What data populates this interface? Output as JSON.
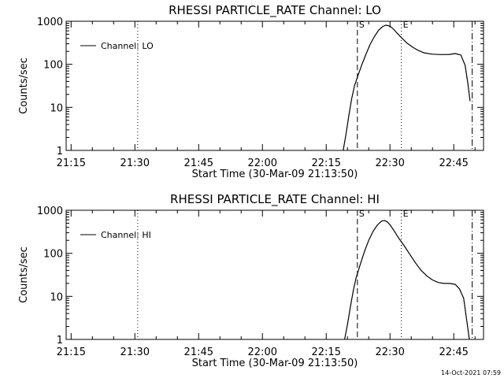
{
  "footer": {
    "timestamp": "14-Oct-2021 07:59"
  },
  "chart_data": [
    {
      "type": "line",
      "title": "RHESSI PARTICLE_RATE Channel: LO",
      "xlabel": "Start Time (30-Mar-09 21:13:50)",
      "ylabel": "Counts/sec",
      "yscale": "log",
      "ylim": [
        1,
        1000
      ],
      "ytick_labels": [
        "1",
        "10",
        "100",
        "1000"
      ],
      "yticks": [
        1,
        10,
        100,
        1000
      ],
      "xlim": [
        "21:13:50",
        "22:52:00"
      ],
      "xtick_labels": [
        "21:15",
        "21:30",
        "21:45",
        "22:00",
        "22:15",
        "22:30",
        "22:45"
      ],
      "xticks": [
        "21:15",
        "21:30",
        "21:45",
        "22:00",
        "22:15",
        "22:30",
        "22:45"
      ],
      "legend": {
        "placement": "top-left",
        "entries": [
          "Channel: LO"
        ]
      },
      "markers": [
        {
          "x": "21:30:40",
          "style": "dotted",
          "label": ""
        },
        {
          "x": "22:22:20",
          "style": "dashed",
          "label": "S"
        },
        {
          "x": "22:32:40",
          "style": "dotted",
          "label": "E"
        },
        {
          "x": "22:49:20",
          "style": "dashdot",
          "label": ""
        }
      ],
      "series": [
        {
          "name": "Channel: LO",
          "x": [
            "22:19:00",
            "22:19:40",
            "22:20:20",
            "22:21:00",
            "22:21:40",
            "22:22:20",
            "22:23:20",
            "22:24:20",
            "22:25:20",
            "22:26:20",
            "22:27:20",
            "22:28:20",
            "22:29:00",
            "22:29:40",
            "22:30:20",
            "22:31:00",
            "22:31:40",
            "22:32:40",
            "22:34:00",
            "22:35:20",
            "22:36:40",
            "22:38:00",
            "22:40:00",
            "22:42:00",
            "22:44:00",
            "22:45:20",
            "22:46:40",
            "22:47:40",
            "22:48:20",
            "22:48:50"
          ],
          "y": [
            1.0,
            2.4,
            6.5,
            16,
            32,
            50,
            95,
            170,
            290,
            440,
            620,
            760,
            810,
            790,
            730,
            630,
            530,
            420,
            310,
            250,
            210,
            185,
            172,
            168,
            170,
            178,
            165,
            95,
            35,
            14
          ]
        }
      ]
    },
    {
      "type": "line",
      "title": "RHESSI PARTICLE_RATE Channel: HI",
      "xlabel": "Start Time (30-Mar-09 21:13:50)",
      "ylabel": "Counts/sec",
      "yscale": "log",
      "ylim": [
        1,
        1000
      ],
      "ytick_labels": [
        "1",
        "10",
        "100",
        "1000"
      ],
      "yticks": [
        1,
        10,
        100,
        1000
      ],
      "xlim": [
        "21:13:50",
        "22:52:00"
      ],
      "xtick_labels": [
        "21:15",
        "21:30",
        "21:45",
        "22:00",
        "22:15",
        "22:30",
        "22:45"
      ],
      "xticks": [
        "21:15",
        "21:30",
        "21:45",
        "22:00",
        "22:15",
        "22:30",
        "22:45"
      ],
      "legend": {
        "placement": "top-left",
        "entries": [
          "Channel: HI"
        ]
      },
      "markers": [
        {
          "x": "21:30:40",
          "style": "dotted",
          "label": ""
        },
        {
          "x": "22:22:20",
          "style": "dashed",
          "label": "S"
        },
        {
          "x": "22:32:40",
          "style": "dotted",
          "label": "E"
        },
        {
          "x": "22:49:20",
          "style": "dashdot",
          "label": ""
        }
      ],
      "series": [
        {
          "name": "Channel: HI",
          "x": [
            "22:19:20",
            "22:20:00",
            "22:20:40",
            "22:21:20",
            "22:22:00",
            "22:23:00",
            "22:24:00",
            "22:25:00",
            "22:26:00",
            "22:27:00",
            "22:28:00",
            "22:28:40",
            "22:29:20",
            "22:30:00",
            "22:31:00",
            "22:32:00",
            "22:33:20",
            "22:34:40",
            "22:36:00",
            "22:37:20",
            "22:38:40",
            "22:40:00",
            "22:41:20",
            "22:42:40",
            "22:44:00",
            "22:45:20",
            "22:46:20",
            "22:47:20",
            "22:48:00",
            "22:48:40"
          ],
          "y": [
            1.0,
            2.2,
            5.5,
            13,
            26,
            55,
            110,
            200,
            320,
            450,
            560,
            580,
            540,
            460,
            330,
            230,
            150,
            95,
            60,
            40,
            30,
            24,
            21,
            20,
            20,
            19,
            15,
            9,
            3,
            1
          ]
        }
      ]
    }
  ]
}
